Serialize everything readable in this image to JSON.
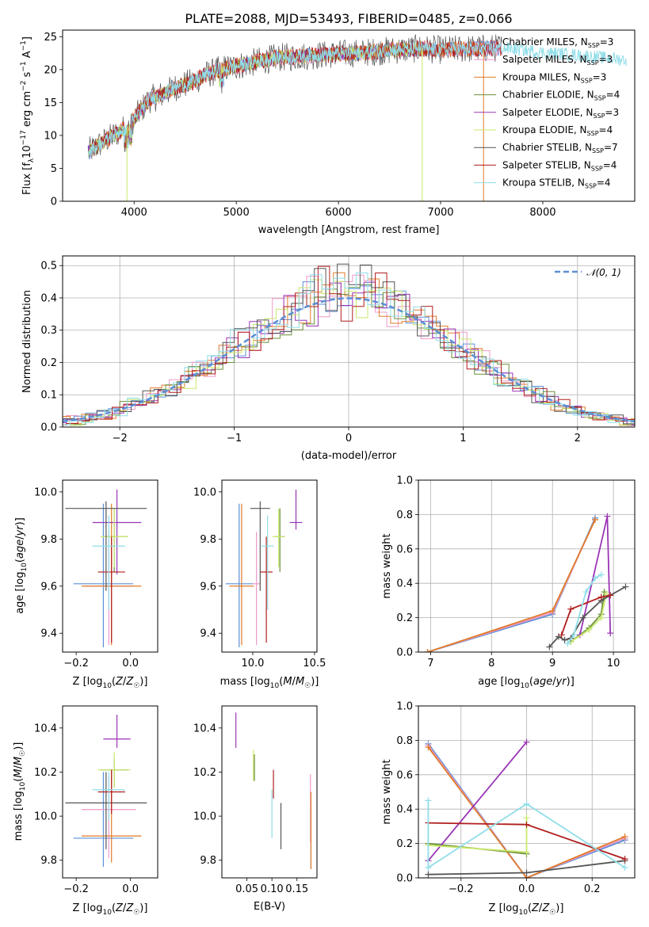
{
  "colors": {
    "chabrier_miles": "#5b8fd6",
    "salpeter_miles": "#ee99c8",
    "kroupa_miles": "#e07b2a",
    "chabrier_elodie": "#6a8f3a",
    "salpeter_elodie": "#9a35b5",
    "kroupa_elodie": "#c9e86b",
    "chabrier_stelib": "#555555",
    "salpeter_stelib": "#b01d1d",
    "kroupa_stelib": "#8fdde8"
  },
  "chart_data": [
    {
      "id": "spectrum",
      "type": "line",
      "title": "PLATE=2088, MJD=53493, FIBERID=0485, z=0.066",
      "xlabel": "wavelength [Angstrom, rest frame]",
      "ylabel_parts": [
        "Flux [f",
        "λ",
        "10",
        "−17",
        " erg cm",
        "−2",
        " s",
        "−1",
        " A",
        "−1",
        "]"
      ],
      "xlim": [
        3300,
        8900
      ],
      "ylim": [
        0,
        26
      ],
      "xticks": [
        4000,
        5000,
        6000,
        7000,
        8000
      ],
      "yticks": [
        0,
        5,
        10,
        15,
        20,
        25
      ],
      "legend_position": "upper right",
      "legend": [
        {
          "label_main": "Chabrier MILES, N",
          "label_sub": "SSP",
          "label_end": "=3",
          "color_key": "chabrier_miles"
        },
        {
          "label_main": "Salpeter MILES, N",
          "label_sub": "SSP",
          "label_end": "=3",
          "color_key": "salpeter_miles"
        },
        {
          "label_main": "Kroupa MILES, N",
          "label_sub": "SSP",
          "label_end": "=3",
          "color_key": "kroupa_miles"
        },
        {
          "label_main": "Chabrier ELODIE, N",
          "label_sub": "SSP",
          "label_end": "=4",
          "color_key": "chabrier_elodie"
        },
        {
          "label_main": "Salpeter ELODIE, N",
          "label_sub": "SSP",
          "label_end": "=3",
          "color_key": "salpeter_elodie"
        },
        {
          "label_main": "Kroupa ELODIE, N",
          "label_sub": "SSP",
          "label_end": "=4",
          "color_key": "kroupa_elodie"
        },
        {
          "label_main": "Chabrier STELIB, N",
          "label_sub": "SSP",
          "label_end": "=7",
          "color_key": "chabrier_stelib"
        },
        {
          "label_main": "Salpeter STELIB, N",
          "label_sub": "SSP",
          "label_end": "=4",
          "color_key": "salpeter_stelib"
        },
        {
          "label_main": "Kroupa STELIB, N",
          "label_sub": "SSP",
          "label_end": "=4",
          "color_key": "kroupa_stelib"
        }
      ],
      "continuum": {
        "x": [
          3550,
          3650,
          3750,
          3850,
          3950,
          4050,
          4150,
          4250,
          4400,
          4550,
          4700,
          4850,
          5000,
          5200,
          5400,
          5600,
          5800,
          6000,
          6200,
          6400,
          6600,
          6800,
          7000,
          7200,
          7400,
          7600,
          7800,
          8000,
          8200,
          8400,
          8600,
          8800
        ],
        "y": [
          7.5,
          8.5,
          9.5,
          10.5,
          11.5,
          13.5,
          15.5,
          16.0,
          17.3,
          18.0,
          19.2,
          20.0,
          20.5,
          21.2,
          21.8,
          22.0,
          22.2,
          22.4,
          22.5,
          22.8,
          23.0,
          23.2,
          23.0,
          23.1,
          23.2,
          23.3,
          23.0,
          22.6,
          22.4,
          22.1,
          21.8,
          21.5
        ]
      },
      "dips": [
        {
          "x": 3930,
          "y": 0,
          "color_key": "kroupa_elodie"
        },
        {
          "x": 6820,
          "y": 0,
          "color_key": "kroupa_elodie"
        },
        {
          "x": 7420,
          "y": 0,
          "color_key": "kroupa_miles"
        }
      ]
    },
    {
      "id": "residuals",
      "type": "area",
      "xlabel": "(data-model)/error",
      "ylabel": "Normed distribution",
      "xlim": [
        -2.5,
        2.5
      ],
      "ylim": [
        0,
        0.53
      ],
      "xticks": [
        -2,
        -1,
        0,
        1,
        2
      ],
      "yticks": [
        0.0,
        0.1,
        0.2,
        0.3,
        0.4,
        0.5
      ],
      "grid": true,
      "legend_position": "upper right",
      "legend": [
        {
          "label": "𝒩(0, 1)",
          "style": "dashed",
          "color_key": "chabrier_miles"
        }
      ],
      "bin_width": 0.1,
      "bins_from": -2.5,
      "bins_to": 2.5
    },
    {
      "id": "z-age",
      "type": "scatter",
      "xlabel": "Z [log10(Z/Z☉)]",
      "xlabel_parts": [
        "Z [log",
        "10",
        "(",
        "Z",
        "/",
        "Z",
        "☉",
        ")]"
      ],
      "ylabel_parts": [
        "age  [log",
        "10",
        "(",
        "age",
        "/",
        "yr",
        ")]"
      ],
      "xlim": [
        -0.25,
        0.1
      ],
      "ylim": [
        9.32,
        10.05
      ],
      "xticks": [
        -0.2,
        0.0
      ],
      "yticks": [
        9.4,
        9.6,
        9.8,
        10.0
      ],
      "points": [
        {
          "x": -0.1,
          "y": 9.61,
          "xerr": 0.11,
          "yerr_lo": 0.27,
          "yerr_hi": 0.34,
          "color_key": "chabrier_miles"
        },
        {
          "x": -0.08,
          "y": 9.6,
          "xerr": 0.09,
          "yerr_lo": 0.25,
          "yerr_hi": 0.23,
          "color_key": "salpeter_miles"
        },
        {
          "x": -0.07,
          "y": 9.6,
          "xerr": 0.11,
          "yerr_lo": 0.25,
          "yerr_hi": 0.35,
          "color_key": "kroupa_miles"
        },
        {
          "x": -0.06,
          "y": 9.81,
          "xerr": 0.05,
          "yerr_lo": 0.15,
          "yerr_hi": 0.12,
          "color_key": "chabrier_elodie"
        },
        {
          "x": -0.05,
          "y": 9.87,
          "xerr": 0.09,
          "yerr_lo": 0.22,
          "yerr_hi": 0.14,
          "color_key": "salpeter_elodie"
        },
        {
          "x": -0.06,
          "y": 9.81,
          "xerr": 0.05,
          "yerr_lo": 0.13,
          "yerr_hi": 0.12,
          "color_key": "kroupa_elodie"
        },
        {
          "x": -0.09,
          "y": 9.93,
          "xerr": 0.15,
          "yerr_lo": 0.35,
          "yerr_hi": 0.03,
          "color_key": "chabrier_stelib"
        },
        {
          "x": -0.07,
          "y": 9.66,
          "xerr": 0.05,
          "yerr_lo": 0.3,
          "yerr_hi": 0.15,
          "color_key": "salpeter_stelib"
        },
        {
          "x": -0.08,
          "y": 9.77,
          "xerr": 0.06,
          "yerr_lo": 0.27,
          "yerr_hi": 0.13,
          "color_key": "kroupa_stelib"
        }
      ]
    },
    {
      "id": "mass-age",
      "type": "scatter",
      "xlabel_parts": [
        "mass [log",
        "10",
        "(",
        "M",
        "/",
        "M",
        "☉",
        ")]"
      ],
      "xlim": [
        9.75,
        10.52
      ],
      "ylim": [
        9.32,
        10.05
      ],
      "xticks": [
        10.0,
        10.5
      ],
      "yticks": [
        9.4,
        9.6,
        9.8,
        10.0
      ],
      "points": [
        {
          "x": 9.89,
          "y": 9.61,
          "xerr": 0.11,
          "yerr_lo": 0.27,
          "yerr_hi": 0.34,
          "color_key": "chabrier_miles"
        },
        {
          "x": 10.03,
          "y": 9.61,
          "xerr": 0.03,
          "yerr_lo": 0.26,
          "yerr_hi": 0.22,
          "color_key": "salpeter_miles"
        },
        {
          "x": 9.91,
          "y": 9.6,
          "xerr": 0.1,
          "yerr_lo": 0.25,
          "yerr_hi": 0.35,
          "color_key": "kroupa_miles"
        },
        {
          "x": 10.22,
          "y": 9.81,
          "xerr": 0.04,
          "yerr_lo": 0.15,
          "yerr_hi": 0.12,
          "color_key": "chabrier_elodie"
        },
        {
          "x": 10.35,
          "y": 9.87,
          "xerr": 0.05,
          "yerr_lo": 0.03,
          "yerr_hi": 0.14,
          "color_key": "salpeter_elodie"
        },
        {
          "x": 10.21,
          "y": 9.81,
          "xerr": 0.05,
          "yerr_lo": 0.13,
          "yerr_hi": 0.12,
          "color_key": "kroupa_elodie"
        },
        {
          "x": 10.06,
          "y": 9.93,
          "xerr": 0.08,
          "yerr_lo": 0.35,
          "yerr_hi": 0.03,
          "color_key": "chabrier_stelib"
        },
        {
          "x": 10.11,
          "y": 9.66,
          "xerr": 0.05,
          "yerr_lo": 0.3,
          "yerr_hi": 0.15,
          "color_key": "salpeter_stelib"
        },
        {
          "x": 10.12,
          "y": 9.77,
          "xerr": 0.05,
          "yerr_lo": 0.27,
          "yerr_hi": 0.13,
          "color_key": "kroupa_stelib"
        }
      ]
    },
    {
      "id": "age-weight",
      "type": "line",
      "xlabel_parts": [
        "age  [log",
        "10",
        "(",
        "age",
        "/",
        "yr",
        ")]"
      ],
      "ylabel": "mass weight",
      "xlim": [
        6.8,
        10.35
      ],
      "ylim": [
        0,
        1.0
      ],
      "xticks": [
        7,
        8,
        9,
        10
      ],
      "yticks": [
        0.0,
        0.2,
        0.4,
        0.6,
        0.8,
        1.0
      ],
      "grid": true,
      "series": [
        {
          "color_key": "chabrier_miles",
          "x": [
            6.95,
            9.0,
            9.7
          ],
          "y": [
            0.0,
            0.22,
            0.78
          ]
        },
        {
          "color_key": "salpeter_miles",
          "x": [
            6.95,
            9.0,
            9.7
          ],
          "y": [
            0.0,
            0.23,
            0.77
          ]
        },
        {
          "color_key": "kroupa_miles",
          "x": [
            6.95,
            9.0,
            9.7
          ],
          "y": [
            0.0,
            0.24,
            0.77
          ]
        },
        {
          "color_key": "chabrier_elodie",
          "x": [
            9.3,
            9.6,
            9.8,
            9.85
          ],
          "y": [
            0.06,
            0.14,
            0.22,
            0.35
          ]
        },
        {
          "color_key": "salpeter_elodie",
          "x": [
            9.45,
            9.9,
            9.95
          ],
          "y": [
            0.1,
            0.79,
            0.11
          ]
        },
        {
          "color_key": "kroupa_elodie",
          "x": [
            9.3,
            9.6,
            9.8,
            9.88
          ],
          "y": [
            0.06,
            0.13,
            0.2,
            0.34
          ]
        },
        {
          "color_key": "chabrier_stelib",
          "x": [
            8.95,
            9.1,
            9.2,
            9.3,
            9.5,
            9.8,
            10.2
          ],
          "y": [
            0.03,
            0.09,
            0.07,
            0.08,
            0.2,
            0.3,
            0.38
          ]
        },
        {
          "color_key": "salpeter_stelib",
          "x": [
            9.15,
            9.3,
            9.8,
            9.95
          ],
          "y": [
            0.1,
            0.25,
            0.32,
            0.33
          ]
        },
        {
          "color_key": "kroupa_stelib",
          "x": [
            9.25,
            9.35,
            9.55,
            9.7,
            9.8
          ],
          "y": [
            0.05,
            0.1,
            0.35,
            0.43,
            0.45
          ]
        }
      ]
    },
    {
      "id": "z-mass",
      "type": "scatter",
      "xlabel_parts": [
        "Z [log",
        "10",
        "(",
        "Z",
        "/",
        "Z",
        "☉",
        ")]"
      ],
      "ylabel_parts": [
        "mass [log",
        "10",
        "(",
        "M",
        "/",
        "M",
        "☉",
        ")]"
      ],
      "xlim": [
        -0.25,
        0.1
      ],
      "ylim": [
        9.72,
        10.5
      ],
      "xticks": [
        -0.2,
        0.0
      ],
      "yticks": [
        9.8,
        10.0,
        10.2,
        10.4
      ],
      "points": [
        {
          "x": -0.1,
          "y": 9.9,
          "xerr": 0.11,
          "yerr_lo": 0.13,
          "yerr_hi": 0.3,
          "color_key": "chabrier_miles"
        },
        {
          "x": -0.08,
          "y": 10.03,
          "xerr": 0.1,
          "yerr_lo": 0.22,
          "yerr_hi": 0.15,
          "color_key": "salpeter_miles"
        },
        {
          "x": -0.07,
          "y": 9.91,
          "xerr": 0.11,
          "yerr_lo": 0.12,
          "yerr_hi": 0.3,
          "color_key": "kroupa_miles"
        },
        {
          "x": -0.06,
          "y": 10.21,
          "xerr": 0.05,
          "yerr_lo": 0.08,
          "yerr_hi": 0.05,
          "color_key": "chabrier_elodie"
        },
        {
          "x": -0.05,
          "y": 10.35,
          "xerr": 0.05,
          "yerr_lo": 0.04,
          "yerr_hi": 0.11,
          "color_key": "salpeter_elodie"
        },
        {
          "x": -0.06,
          "y": 10.21,
          "xerr": 0.06,
          "yerr_lo": 0.08,
          "yerr_hi": 0.08,
          "color_key": "kroupa_elodie"
        },
        {
          "x": -0.09,
          "y": 10.06,
          "xerr": 0.15,
          "yerr_lo": 0.21,
          "yerr_hi": 0.14,
          "color_key": "chabrier_stelib"
        },
        {
          "x": -0.07,
          "y": 10.11,
          "xerr": 0.05,
          "yerr_lo": 0.1,
          "yerr_hi": 0.1,
          "color_key": "salpeter_stelib"
        },
        {
          "x": -0.08,
          "y": 10.12,
          "xerr": 0.06,
          "yerr_lo": 0.14,
          "yerr_hi": 0.08,
          "color_key": "kroupa_stelib"
        }
      ]
    },
    {
      "id": "ebv-mass",
      "type": "scatter",
      "xlabel": "E(B-V)",
      "xlim": [
        0.0,
        0.19
      ],
      "ylim": [
        9.72,
        10.5
      ],
      "xticks": [
        0.05,
        0.1,
        0.15
      ],
      "yticks": [
        9.8,
        10.0,
        10.2,
        10.4
      ],
      "points": [
        {
          "x": 0.178,
          "y": 9.93,
          "yerr_lo": 0.17,
          "yerr_hi": 0.12,
          "color_key": "chabrier_miles"
        },
        {
          "x": 0.177,
          "y": 10.03,
          "yerr_lo": 0.15,
          "yerr_hi": 0.16,
          "color_key": "salpeter_miles"
        },
        {
          "x": 0.178,
          "y": 9.93,
          "yerr_lo": 0.17,
          "yerr_hi": 0.18,
          "color_key": "kroupa_miles"
        },
        {
          "x": 0.065,
          "y": 10.21,
          "yerr_lo": 0.05,
          "yerr_hi": 0.07,
          "color_key": "chabrier_elodie"
        },
        {
          "x": 0.028,
          "y": 10.36,
          "yerr_lo": 0.05,
          "yerr_hi": 0.11,
          "color_key": "salpeter_elodie"
        },
        {
          "x": 0.063,
          "y": 10.21,
          "yerr_lo": 0.05,
          "yerr_hi": 0.09,
          "color_key": "kroupa_elodie"
        },
        {
          "x": 0.118,
          "y": 10.0,
          "yerr_lo": 0.15,
          "yerr_hi": 0.06,
          "color_key": "chabrier_stelib"
        },
        {
          "x": 0.103,
          "y": 10.13,
          "yerr_lo": 0.05,
          "yerr_hi": 0.08,
          "color_key": "salpeter_stelib"
        },
        {
          "x": 0.1,
          "y": 10.02,
          "yerr_lo": 0.12,
          "yerr_hi": 0.1,
          "color_key": "kroupa_stelib"
        }
      ]
    },
    {
      "id": "z-weight",
      "type": "line",
      "xlabel_parts": [
        "Z [log",
        "10",
        "(",
        "Z",
        "/",
        "Z",
        "☉",
        ")]"
      ],
      "ylabel": "mass weight",
      "xlim": [
        -0.33,
        0.33
      ],
      "ylim": [
        0,
        1.0
      ],
      "xticks": [
        -0.2,
        0.0,
        0.2
      ],
      "yticks": [
        0.0,
        0.2,
        0.4,
        0.6,
        0.8,
        1.0
      ],
      "grid": true,
      "series": [
        {
          "color_key": "chabrier_miles",
          "x": [
            -0.3,
            0.0,
            0.3
          ],
          "y": [
            0.78,
            0.0,
            0.22
          ]
        },
        {
          "color_key": "salpeter_miles",
          "x": [
            -0.3,
            0.0,
            0.3
          ],
          "y": [
            0.77,
            0.0,
            0.23
          ]
        },
        {
          "color_key": "kroupa_miles",
          "x": [
            -0.3,
            0.0,
            0.3
          ],
          "y": [
            0.76,
            0.0,
            0.24
          ]
        },
        {
          "color_key": "chabrier_elodie",
          "x": [
            -0.3,
            0.0
          ],
          "y": [
            0.2,
            0.14
          ]
        },
        {
          "color_key": "salpeter_elodie",
          "x": [
            -0.3,
            0.0
          ],
          "y": [
            0.1,
            0.79
          ]
        },
        {
          "color_key": "kroupa_elodie",
          "x": [
            -0.3,
            0.0,
            0.0
          ],
          "y": [
            0.19,
            0.15,
            0.35
          ]
        },
        {
          "color_key": "chabrier_stelib",
          "x": [
            -0.3,
            0.0,
            0.3
          ],
          "y": [
            0.02,
            0.03,
            0.1
          ]
        },
        {
          "color_key": "salpeter_stelib",
          "x": [
            -0.3,
            0.0,
            0.3
          ],
          "y": [
            0.32,
            0.31,
            0.11
          ]
        },
        {
          "color_key": "kroupa_stelib",
          "x": [
            -0.3,
            -0.3,
            0.0,
            0.3
          ],
          "y": [
            0.45,
            0.06,
            0.43,
            0.06
          ]
        }
      ]
    }
  ]
}
